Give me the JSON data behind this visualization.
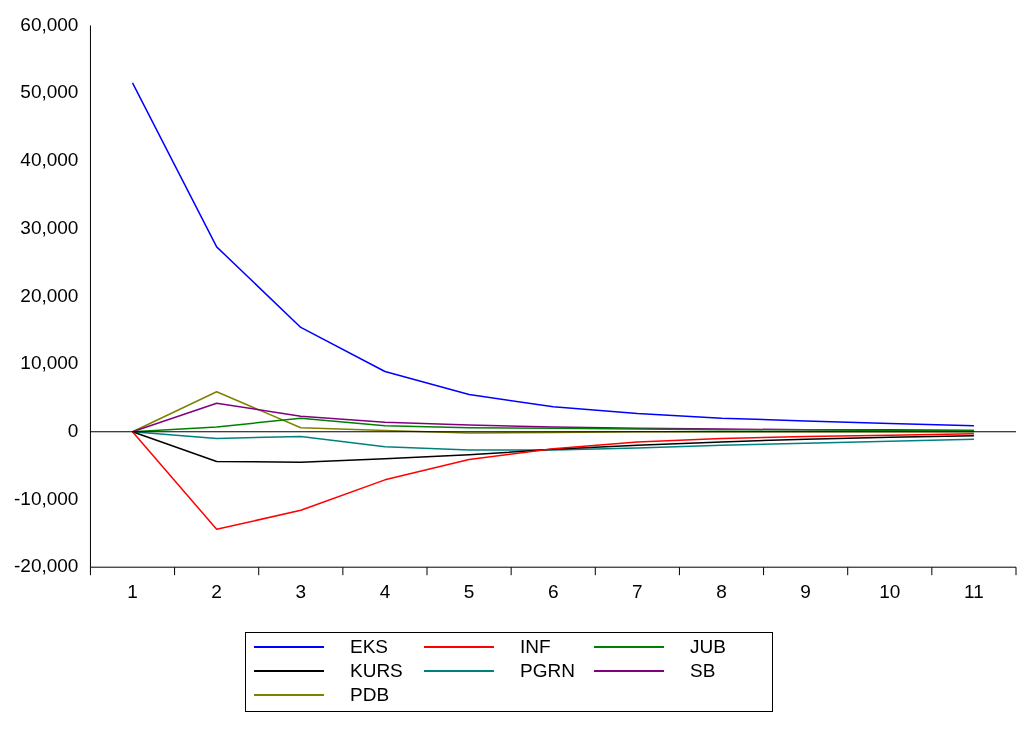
{
  "chart_data": {
    "type": "line",
    "categories": [
      "1",
      "2",
      "3",
      "4",
      "5",
      "6",
      "7",
      "8",
      "9",
      "10",
      "11"
    ],
    "ylim": [
      -20000,
      60000
    ],
    "yticks": [
      {
        "value": -20000,
        "label": "-20,000"
      },
      {
        "value": -10000,
        "label": "-10,000"
      },
      0,
      {
        "value": 10000,
        "label": "10,000"
      },
      {
        "value": 20000,
        "label": "20,000"
      },
      {
        "value": 30000,
        "label": "30,000"
      },
      {
        "value": 40000,
        "label": "40,000"
      },
      {
        "value": 50000,
        "label": "50,000"
      },
      {
        "value": 60000,
        "label": "60,000"
      }
    ],
    "ref_lines": [
      {
        "axis": "y",
        "value": 0,
        "color": "#000000"
      }
    ],
    "grid": false,
    "legend": "bottom",
    "marker": "none",
    "line_style": "solid",
    "series": [
      {
        "name": "EKS",
        "color": "#0000ff",
        "values": [
          51500,
          27300,
          15400,
          8900,
          5500,
          3700,
          2700,
          2000,
          1600,
          1200,
          900
        ]
      },
      {
        "name": "INF",
        "color": "#ff0000",
        "values": [
          0,
          -14400,
          -11600,
          -7100,
          -4100,
          -2500,
          -1500,
          -1000,
          -700,
          -500,
          -300
        ]
      },
      {
        "name": "JUB",
        "color": "#008000",
        "values": [
          0,
          700,
          2000,
          900,
          600,
          500,
          400,
          300,
          300,
          200,
          200
        ]
      },
      {
        "name": "KURS",
        "color": "#000000",
        "values": [
          0,
          -4400,
          -4500,
          -4000,
          -3400,
          -2600,
          -2000,
          -1500,
          -1100,
          -800,
          -600
        ]
      },
      {
        "name": "PGRN",
        "color": "#008080",
        "values": [
          0,
          -1000,
          -700,
          -2200,
          -2700,
          -2700,
          -2400,
          -2000,
          -1700,
          -1400,
          -1100
        ]
      },
      {
        "name": "SB",
        "color": "#800080",
        "values": [
          0,
          4200,
          2300,
          1400,
          1000,
          700,
          500,
          400,
          300,
          300,
          200
        ]
      },
      {
        "name": "PDB",
        "color": "#808000",
        "values": [
          0,
          5900,
          600,
          200,
          -200,
          -100,
          0,
          0,
          0,
          0,
          0
        ]
      }
    ]
  }
}
